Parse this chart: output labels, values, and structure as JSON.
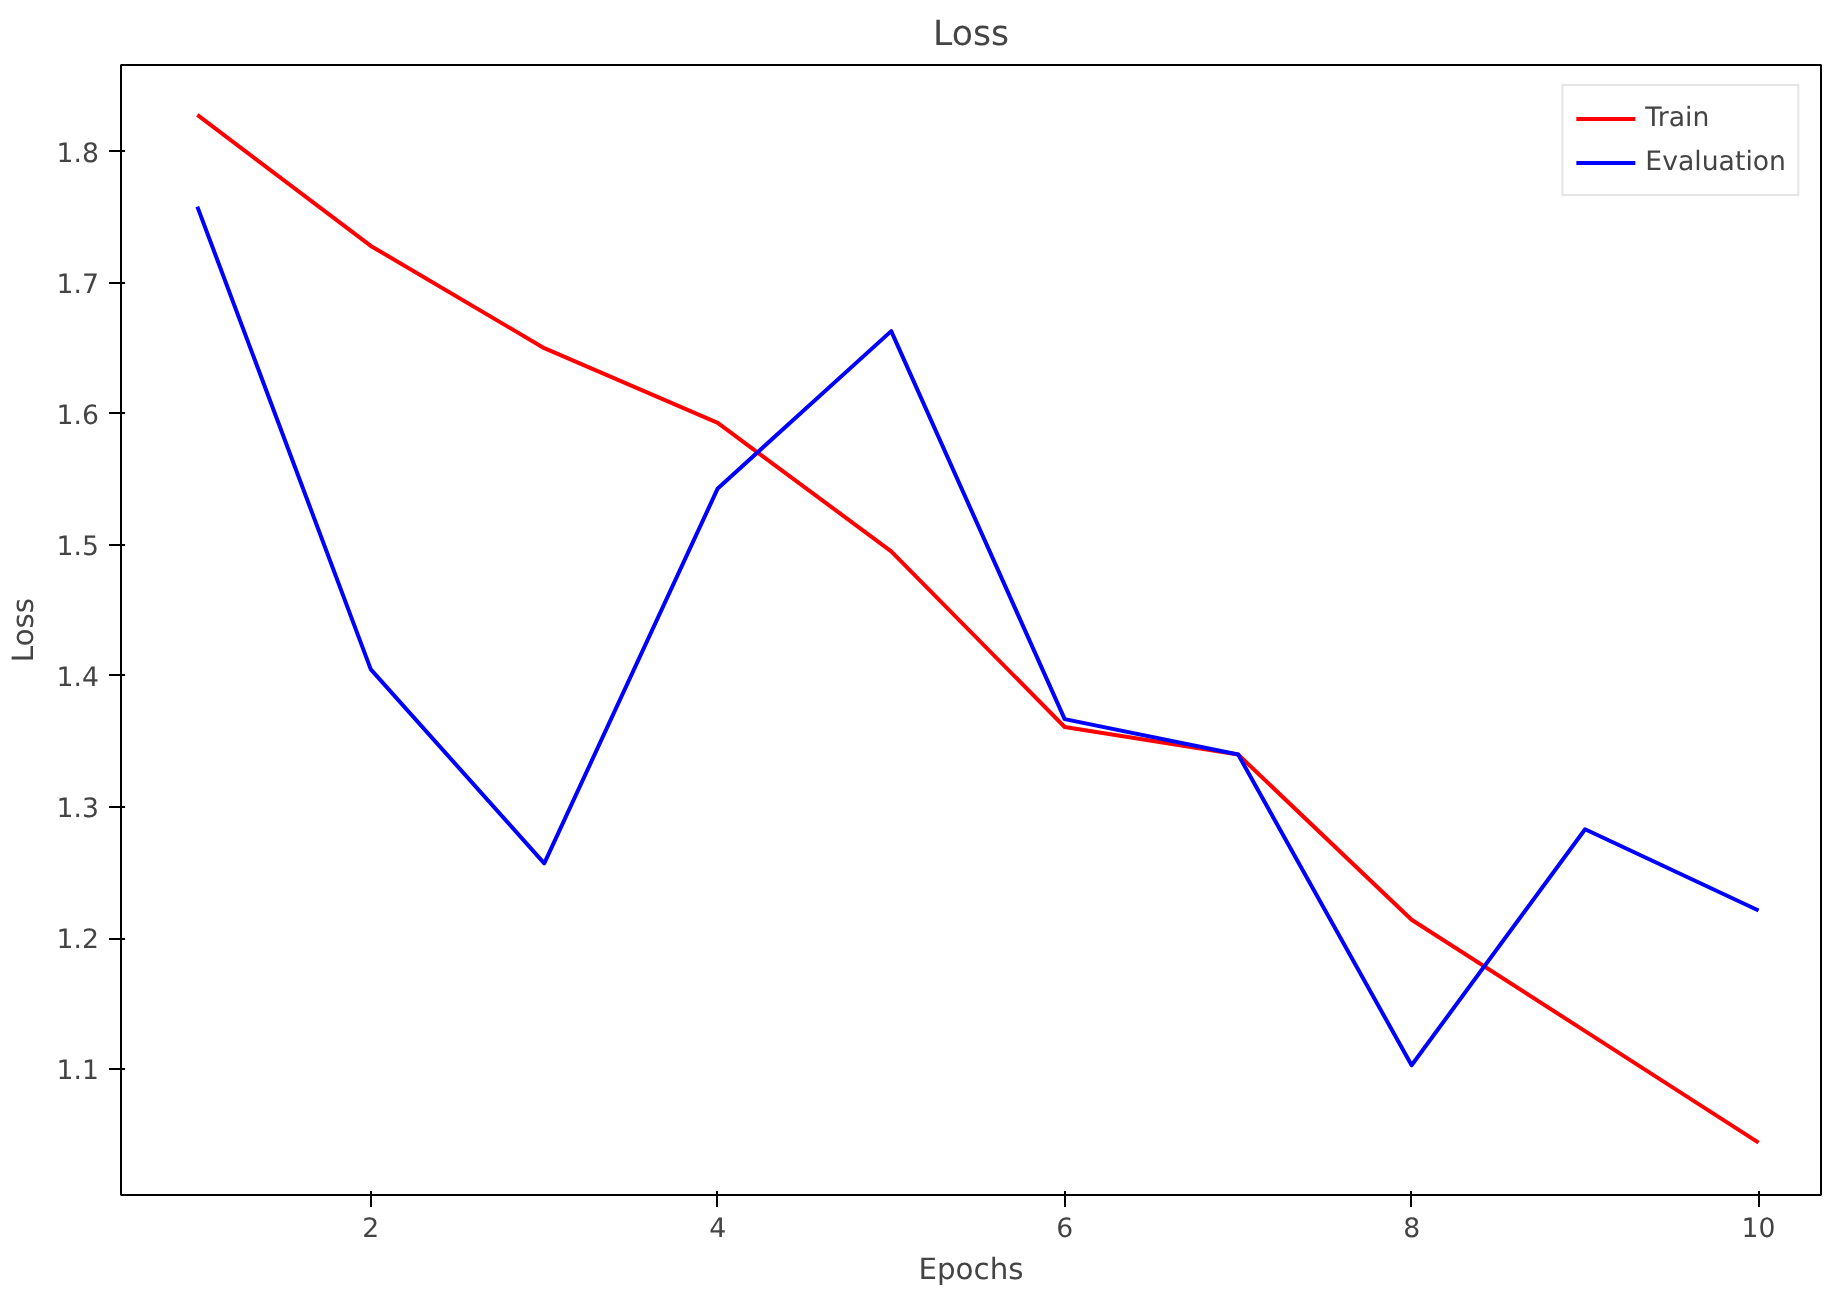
{
  "chart_data": {
    "type": "line",
    "title": "Loss",
    "xlabel": "Epochs",
    "ylabel": "Loss",
    "x": [
      1,
      2,
      3,
      4,
      5,
      6,
      7,
      8,
      9,
      10
    ],
    "series": [
      {
        "name": "Train",
        "color": "#ff0000",
        "values": [
          1.828,
          1.728,
          1.65,
          1.593,
          1.495,
          1.361,
          1.34,
          1.214,
          1.129,
          1.044
        ]
      },
      {
        "name": "Evaluation",
        "color": "#0000ff",
        "values": [
          1.758,
          1.405,
          1.257,
          1.543,
          1.663,
          1.367,
          1.34,
          1.103,
          1.283,
          1.221
        ]
      }
    ],
    "xlim": [
      0.56,
      10.36
    ],
    "ylim": [
      1.004,
      1.866
    ],
    "xticks": [
      2,
      4,
      6,
      8,
      10
    ],
    "yticks": [
      1.1,
      1.2,
      1.3,
      1.4,
      1.5,
      1.6,
      1.7,
      1.8
    ],
    "grid": false,
    "legend": "top right"
  }
}
